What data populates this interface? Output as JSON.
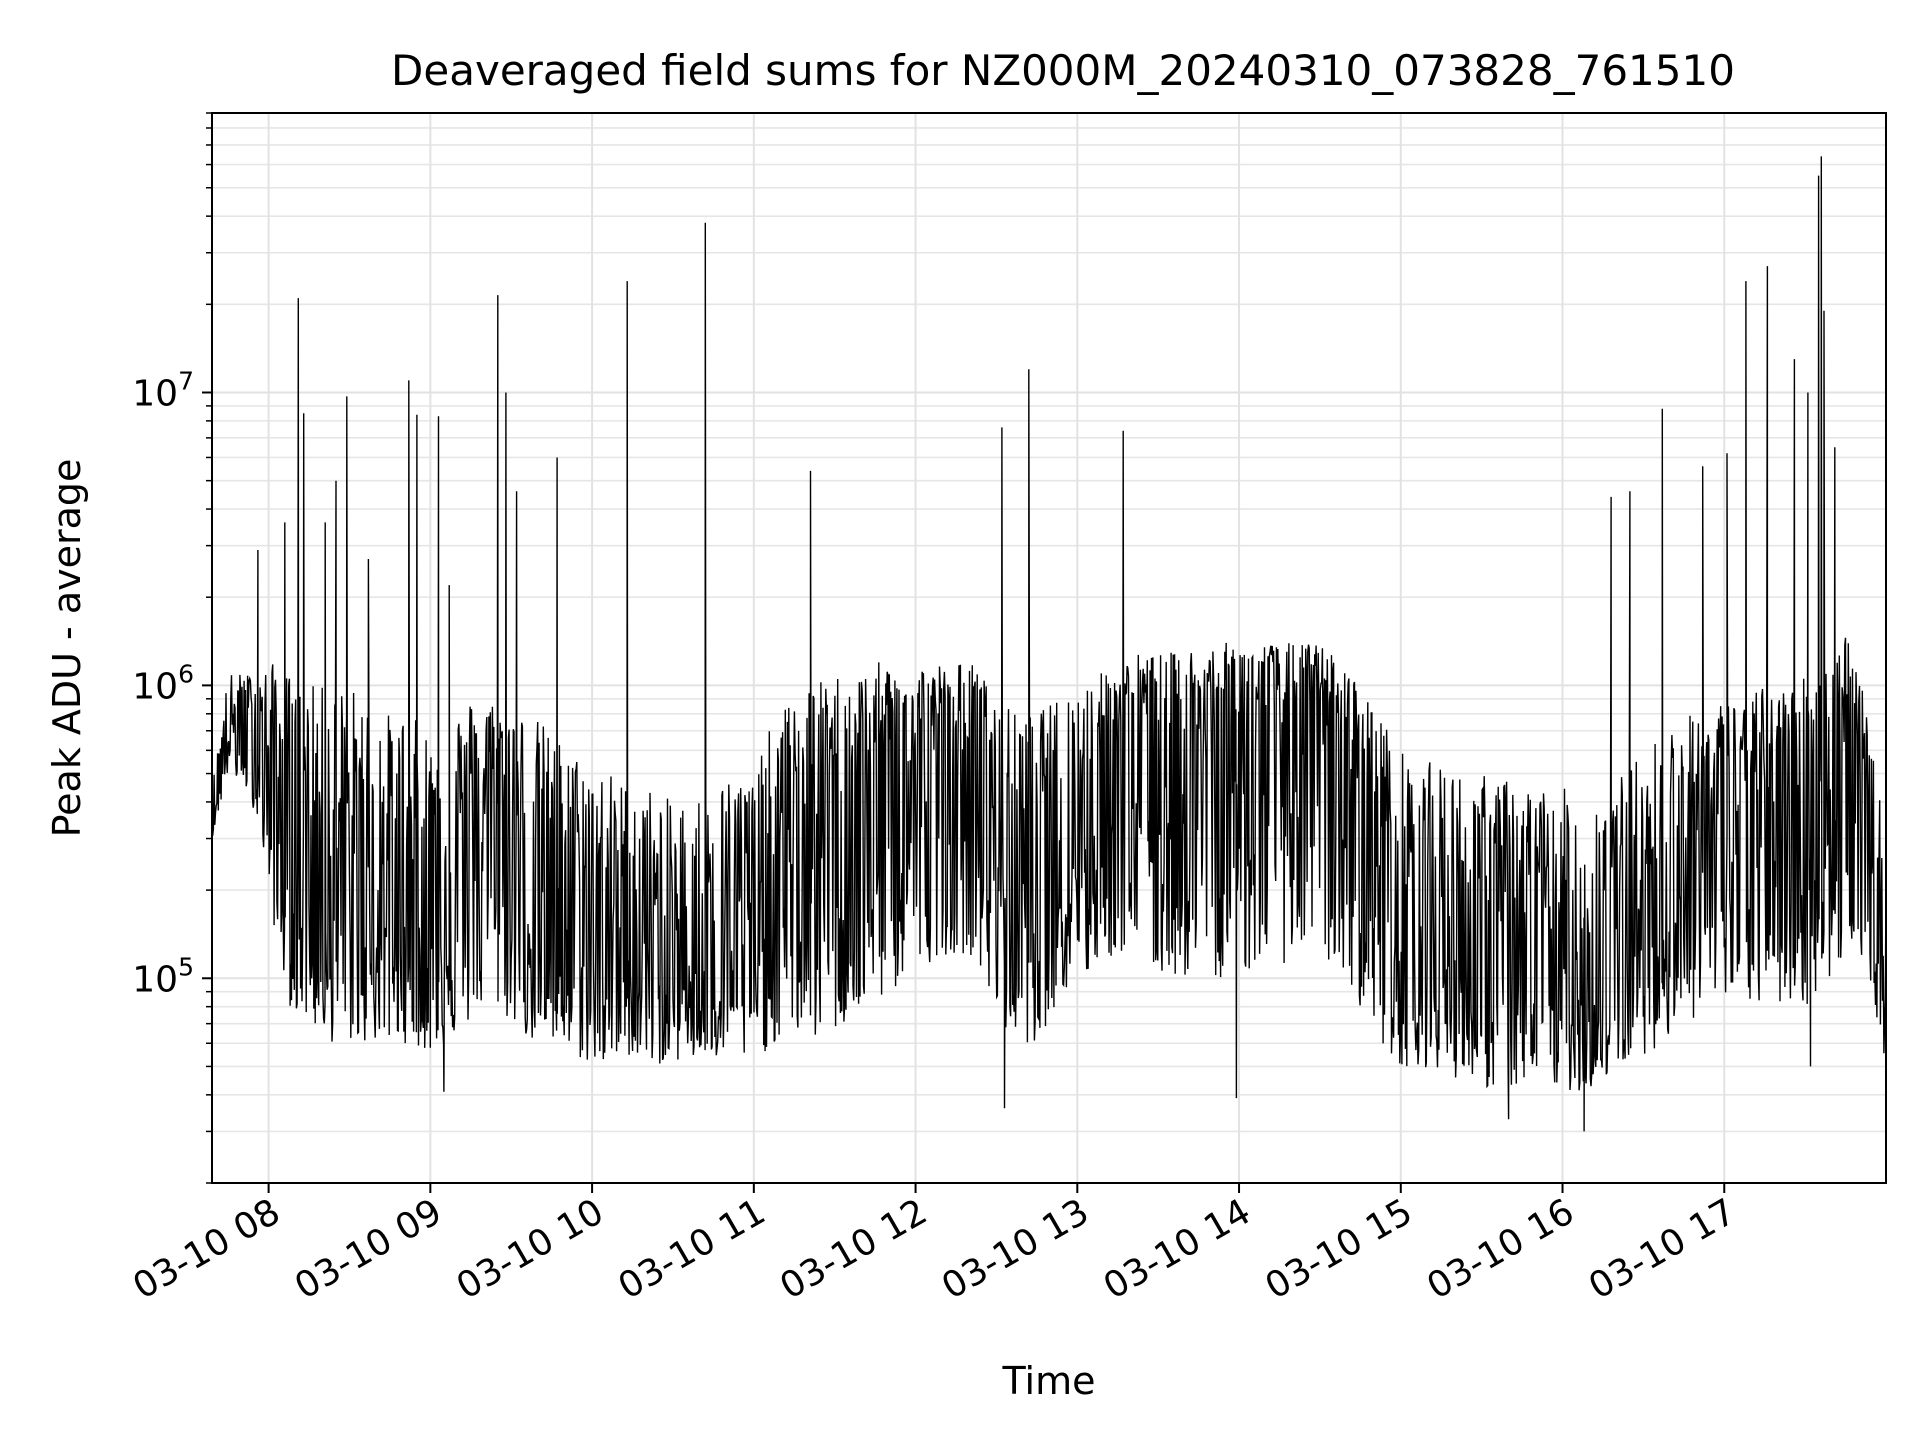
{
  "chart_data": {
    "type": "line",
    "title": "Deaveraged field sums for NZ000M_20240310_073828_761510",
    "xlabel": "Time",
    "ylabel": "Peak ADU - average",
    "yscale": "log",
    "ylim": [
      20000,
      90000000
    ],
    "xlim": [
      "03-10 07:39",
      "03-10 18:00"
    ],
    "grid": true,
    "x_ticks": [
      "03-10 08",
      "03-10 09",
      "03-10 10",
      "03-10 11",
      "03-10 12",
      "03-10 13",
      "03-10 14",
      "03-10 15",
      "03-10 16",
      "03-10 17"
    ],
    "y_ticks": [
      {
        "value": 100000,
        "base": "10",
        "exp": "5"
      },
      {
        "value": 1000000,
        "base": "10",
        "exp": "6"
      },
      {
        "value": 10000000,
        "base": "10",
        "exp": "7"
      }
    ],
    "line_color": "#000000",
    "series": [
      {
        "x": [
          "03-10 07:39",
          "03-10 07:45",
          "03-10 07:51",
          "03-10 07:56",
          "03-10 08:02",
          "03-10 08:08",
          "03-10 08:15",
          "03-10 08:22",
          "03-10 08:30",
          "03-10 08:38",
          "03-10 08:45",
          "03-10 08:52",
          "03-10 09:00",
          "03-10 09:08",
          "03-10 09:15",
          "03-10 09:22",
          "03-10 09:30",
          "03-10 09:38",
          "03-10 09:45",
          "03-10 09:52",
          "03-10 10:00",
          "03-10 10:08",
          "03-10 10:15",
          "03-10 10:22",
          "03-10 10:30",
          "03-10 10:38",
          "03-10 10:45",
          "03-10 10:52",
          "03-10 11:00",
          "03-10 11:08",
          "03-10 11:15",
          "03-10 11:22",
          "03-10 11:30",
          "03-10 11:38",
          "03-10 11:45",
          "03-10 11:52",
          "03-10 12:00",
          "03-10 12:08",
          "03-10 12:15",
          "03-10 12:22",
          "03-10 12:30",
          "03-10 12:38",
          "03-10 12:45",
          "03-10 12:52",
          "03-10 13:00",
          "03-10 13:08",
          "03-10 13:15",
          "03-10 13:22",
          "03-10 13:30",
          "03-10 13:38",
          "03-10 13:45",
          "03-10 13:52",
          "03-10 14:00",
          "03-10 14:08",
          "03-10 14:15",
          "03-10 14:22",
          "03-10 14:30",
          "03-10 14:38",
          "03-10 14:45",
          "03-10 14:52",
          "03-10 15:00",
          "03-10 15:08",
          "03-10 15:15",
          "03-10 15:22",
          "03-10 15:30",
          "03-10 15:38",
          "03-10 15:45",
          "03-10 15:52",
          "03-10 16:00",
          "03-10 16:08",
          "03-10 16:15",
          "03-10 16:22",
          "03-10 16:30",
          "03-10 16:38",
          "03-10 16:45",
          "03-10 16:52",
          "03-10 17:00",
          "03-10 17:08",
          "03-10 17:15",
          "03-10 17:22",
          "03-10 17:30",
          "03-10 17:38",
          "03-10 17:45",
          "03-10 17:52",
          "03-10 18:00"
        ],
        "median": [
          350000,
          700000,
          700000,
          650000,
          400000,
          200000,
          250000,
          200000,
          180000,
          170000,
          150000,
          170000,
          150000,
          200000,
          300000,
          400000,
          250000,
          170000,
          150000,
          140000,
          130000,
          120000,
          120000,
          110000,
          100000,
          110000,
          120000,
          130000,
          120000,
          180000,
          250000,
          300000,
          320000,
          350000,
          400000,
          400000,
          450000,
          500000,
          500000,
          550000,
          300000,
          220000,
          220000,
          300000,
          350000,
          450000,
          500000,
          550000,
          500000,
          550000,
          600000,
          600000,
          650000,
          700000,
          700000,
          750000,
          700000,
          550000,
          400000,
          300000,
          170000,
          140000,
          130000,
          130000,
          120000,
          120000,
          110000,
          100000,
          100000,
          90000,
          100000,
          110000,
          150000,
          200000,
          250000,
          280000,
          300000,
          300000,
          350000,
          350000,
          380000,
          400000,
          500000,
          300000,
          100000
        ],
        "low": [
          300000,
          500000,
          450000,
          350000,
          150000,
          80000,
          70000,
          60000,
          60000,
          60000,
          60000,
          60000,
          55000,
          60000,
          70000,
          80000,
          70000,
          60000,
          58000,
          55000,
          50000,
          50000,
          55000,
          50000,
          52000,
          52000,
          52000,
          52000,
          52000,
          60000,
          65000,
          60000,
          65000,
          70000,
          80000,
          90000,
          100000,
          120000,
          120000,
          120000,
          70000,
          60000,
          60000,
          80000,
          90000,
          110000,
          120000,
          120000,
          100000,
          100000,
          100000,
          100000,
          100000,
          110000,
          110000,
          120000,
          120000,
          100000,
          80000,
          60000,
          50000,
          50000,
          48000,
          45000,
          42000,
          42000,
          42000,
          42000,
          42000,
          40000,
          45000,
          50000,
          55000,
          60000,
          70000,
          75000,
          80000,
          80000,
          80000,
          80000,
          80000,
          90000,
          120000,
          120000,
          50000
        ],
        "high": [
          450000,
          1100000,
          1100000,
          1100000,
          1200000,
          1100000,
          1000000,
          1000000,
          1000000,
          900000,
          800000,
          800000,
          700000,
          800000,
          900000,
          900000,
          850000,
          800000,
          700000,
          600000,
          550000,
          500000,
          450000,
          450000,
          400000,
          420000,
          450000,
          500000,
          500000,
          800000,
          900000,
          1000000,
          1100000,
          1100000,
          1200000,
          1200000,
          1200000,
          1200000,
          1200000,
          1200000,
          900000,
          800000,
          800000,
          900000,
          1000000,
          1100000,
          1200000,
          1300000,
          1300000,
          1300000,
          1400000,
          1400000,
          1400000,
          1400000,
          1400000,
          1400000,
          1400000,
          1200000,
          1000000,
          800000,
          600000,
          550000,
          550000,
          500000,
          500000,
          480000,
          480000,
          450000,
          450000,
          400000,
          450000,
          500000,
          600000,
          700000,
          800000,
          800000,
          900000,
          900000,
          1000000,
          1000000,
          1100000,
          1200000,
          1600000,
          900000,
          300000
        ]
      }
    ],
    "spikes": [
      {
        "x": "03-10 07:56",
        "y": 2900000
      },
      {
        "x": "03-10 08:06",
        "y": 3600000
      },
      {
        "x": "03-10 08:11",
        "y": 21000000
      },
      {
        "x": "03-10 08:13",
        "y": 8500000
      },
      {
        "x": "03-10 08:21",
        "y": 3600000
      },
      {
        "x": "03-10 08:25",
        "y": 5000000
      },
      {
        "x": "03-10 08:29",
        "y": 9700000
      },
      {
        "x": "03-10 08:37",
        "y": 2700000
      },
      {
        "x": "03-10 08:52",
        "y": 11000000
      },
      {
        "x": "03-10 08:55",
        "y": 8400000
      },
      {
        "x": "03-10 09:03",
        "y": 8300000
      },
      {
        "x": "03-10 09:07",
        "y": 2200000
      },
      {
        "x": "03-10 09:25",
        "y": 21500000
      },
      {
        "x": "03-10 09:28",
        "y": 10000000
      },
      {
        "x": "03-10 09:32",
        "y": 4600000
      },
      {
        "x": "03-10 09:47",
        "y": 6000000
      },
      {
        "x": "03-10 10:13",
        "y": 24000000
      },
      {
        "x": "03-10 10:42",
        "y": 38000000
      },
      {
        "x": "03-10 11:21",
        "y": 5400000
      },
      {
        "x": "03-10 12:32",
        "y": 7600000
      },
      {
        "x": "03-10 12:42",
        "y": 12000000
      },
      {
        "x": "03-10 13:17",
        "y": 7400000
      },
      {
        "x": "03-10 16:18",
        "y": 4400000
      },
      {
        "x": "03-10 16:25",
        "y": 4600000
      },
      {
        "x": "03-10 16:37",
        "y": 8800000
      },
      {
        "x": "03-10 16:52",
        "y": 5600000
      },
      {
        "x": "03-10 17:01",
        "y": 6200000
      },
      {
        "x": "03-10 17:08",
        "y": 24000000
      },
      {
        "x": "03-10 17:16",
        "y": 27000000
      },
      {
        "x": "03-10 17:26",
        "y": 13000000
      },
      {
        "x": "03-10 17:31",
        "y": 10000000
      },
      {
        "x": "03-10 17:35",
        "y": 55000000
      },
      {
        "x": "03-10 17:36",
        "y": 64000000
      },
      {
        "x": "03-10 17:37",
        "y": 19000000
      },
      {
        "x": "03-10 17:41",
        "y": 6500000
      }
    ],
    "dips": [
      {
        "x": "03-10 09:05",
        "y": 41000.0
      },
      {
        "x": "03-10 12:33",
        "y": 36000
      },
      {
        "x": "03-10 13:59",
        "y": 39000
      },
      {
        "x": "03-10 15:40",
        "y": 33000
      },
      {
        "x": "03-10 16:08",
        "y": 30000
      },
      {
        "x": "03-10 17:32",
        "y": 50000
      }
    ]
  }
}
